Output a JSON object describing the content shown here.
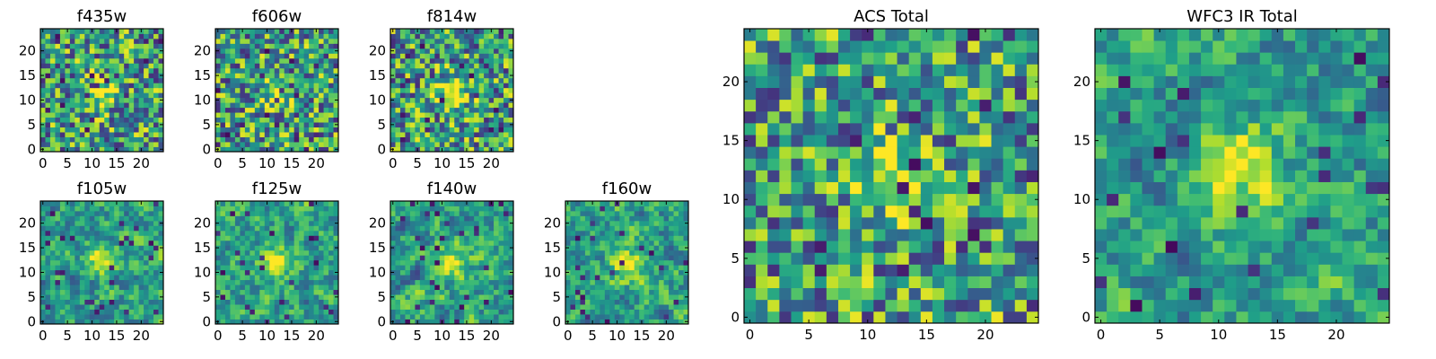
{
  "chart_data": [
    {
      "type": "heatmap",
      "title": "f435w",
      "grid": [
        25,
        25
      ],
      "xticks": [
        0,
        5,
        10,
        15,
        20
      ],
      "yticks": [
        0,
        5,
        10,
        15,
        20
      ],
      "peak": [
        12,
        12
      ],
      "colormap": "viridis"
    },
    {
      "type": "heatmap",
      "title": "f606w",
      "grid": [
        25,
        25
      ],
      "xticks": [
        0,
        5,
        10,
        15,
        20
      ],
      "yticks": [
        0,
        5,
        10,
        15,
        20
      ],
      "peak": [
        12,
        12
      ],
      "colormap": "viridis"
    },
    {
      "type": "heatmap",
      "title": "f814w",
      "grid": [
        25,
        25
      ],
      "xticks": [
        0,
        5,
        10,
        15,
        20
      ],
      "yticks": [
        0,
        5,
        10,
        15,
        20
      ],
      "peak": [
        12,
        12
      ],
      "colormap": "viridis"
    },
    {
      "type": "heatmap",
      "title": "f105w",
      "grid": [
        25,
        25
      ],
      "xticks": [
        0,
        5,
        10,
        15,
        20
      ],
      "yticks": [
        0,
        5,
        10,
        15,
        20
      ],
      "peak": [
        12,
        13
      ],
      "colormap": "viridis"
    },
    {
      "type": "heatmap",
      "title": "f125w",
      "grid": [
        25,
        25
      ],
      "xticks": [
        0,
        5,
        10,
        15,
        20
      ],
      "yticks": [
        0,
        5,
        10,
        15,
        20
      ],
      "peak": [
        12,
        12
      ],
      "colormap": "viridis"
    },
    {
      "type": "heatmap",
      "title": "f140w",
      "grid": [
        25,
        25
      ],
      "xticks": [
        0,
        5,
        10,
        15,
        20
      ],
      "yticks": [
        0,
        5,
        10,
        15,
        20
      ],
      "peak": [
        12,
        12
      ],
      "colormap": "viridis"
    },
    {
      "type": "heatmap",
      "title": "f160w",
      "grid": [
        25,
        25
      ],
      "xticks": [
        0,
        5,
        10,
        15,
        20
      ],
      "yticks": [
        0,
        5,
        10,
        15,
        20
      ],
      "peak": [
        12,
        12
      ],
      "colormap": "viridis"
    },
    {
      "type": "heatmap",
      "title": "ACS Total",
      "grid": [
        25,
        25
      ],
      "xticks": [
        0,
        5,
        10,
        15,
        20
      ],
      "yticks": [
        0,
        5,
        10,
        15,
        20
      ],
      "peak": [
        12,
        12
      ],
      "colormap": "viridis"
    },
    {
      "type": "heatmap",
      "title": "WFC3 IR Total",
      "grid": [
        25,
        25
      ],
      "xticks": [
        0,
        5,
        10,
        15,
        20
      ],
      "yticks": [
        0,
        5,
        10,
        15,
        20
      ],
      "peak": [
        12,
        13
      ],
      "colormap": "viridis"
    }
  ]
}
